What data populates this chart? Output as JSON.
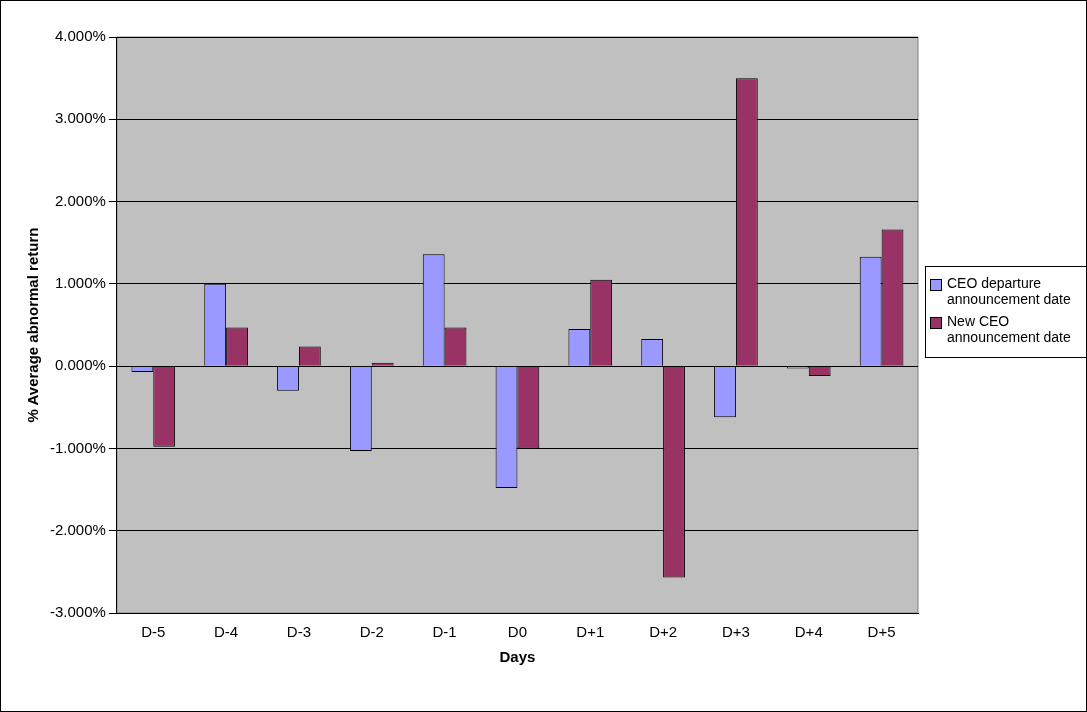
{
  "chart_data": {
    "type": "bar",
    "xlabel": "Days",
    "ylabel": "% Average abnormal return",
    "categories": [
      "D-5",
      "D-4",
      "D-3",
      "D-2",
      "D-1",
      "D0",
      "D+1",
      "D+2",
      "D+3",
      "D+4",
      "D+5"
    ],
    "series": [
      {
        "name": "CEO departure announcement date",
        "color": "#9999ff",
        "values": [
          -0.07,
          1.0,
          -0.3,
          -1.03,
          1.36,
          -1.48,
          0.45,
          0.33,
          -0.62,
          -0.03,
          1.33
        ]
      },
      {
        "name": "New  CEO announcement date",
        "color": "#993366",
        "values": [
          -0.98,
          0.47,
          0.24,
          0.04,
          0.47,
          -1.0,
          1.05,
          -2.57,
          3.5,
          -0.12,
          1.66
        ]
      }
    ],
    "ylim": [
      -3,
      4
    ],
    "yticks": [
      {
        "value": -3,
        "label": "-3.000%"
      },
      {
        "value": -2,
        "label": "-2.000%"
      },
      {
        "value": -1,
        "label": "-1.000%"
      },
      {
        "value": 0,
        "label": "0.000%"
      },
      {
        "value": 1,
        "label": "1.000%"
      },
      {
        "value": 2,
        "label": "2.000%"
      },
      {
        "value": 3,
        "label": "3.000%"
      },
      {
        "value": 4,
        "label": "4.000%"
      }
    ],
    "grid": "y",
    "legend": "right"
  }
}
